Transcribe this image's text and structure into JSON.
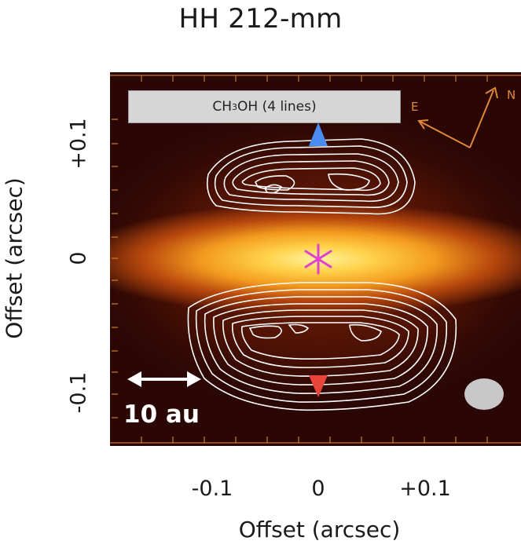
{
  "figure": {
    "title": "HH 212-mm",
    "xlabel": "Offset (arcsec)",
    "ylabel": "Offset (arcsec)",
    "x_ticks": [
      "-0.1",
      "0",
      "+0.1"
    ],
    "y_ticks": [
      "+0.1",
      "0",
      "-0.1"
    ],
    "legend": {
      "molecule_prefix": "CH",
      "molecule_sub": "3",
      "molecule_suffix": "OH (4 lines)"
    },
    "scale_bar_label": "10 au",
    "compass": {
      "east": "E",
      "north": "N"
    },
    "colors": {
      "blue_jet": "#4a8cf0",
      "red_jet": "#e8453a",
      "star_marker": "#e040d0",
      "compass": "#e0883a",
      "contours": "#ffffff"
    }
  }
}
